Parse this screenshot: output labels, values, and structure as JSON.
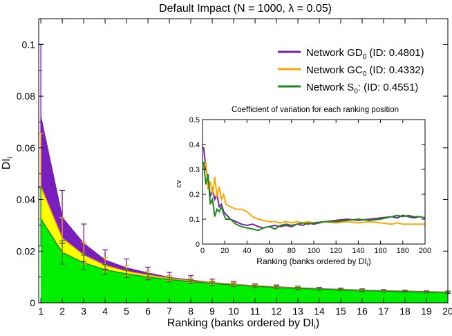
{
  "chart_data": [
    {
      "type": "area",
      "title": "Default Impact  (N = 1000, λ = 0.05)",
      "xlabel": "Ranking (banks ordered by DI",
      "xlabel_sub": "i",
      "xlabel_tail": ")",
      "ylabel": "DI",
      "ylabel_sub": "i",
      "xlim": [
        0.9,
        20
      ],
      "ylim": [
        0,
        0.11
      ],
      "x_ticks": [
        1,
        2,
        3,
        4,
        5,
        6,
        7,
        8,
        9,
        10,
        11,
        12,
        13,
        14,
        15,
        16,
        17,
        18,
        19,
        20
      ],
      "y_ticks": [
        0,
        0.02,
        0.04,
        0.06,
        0.08,
        0.1
      ],
      "y_tick_labels": [
        "0",
        "0.02",
        "0.04",
        "0.06",
        "0.08",
        "0.1"
      ],
      "grid": false,
      "legend": "top-right",
      "x": [
        1,
        2,
        3,
        4,
        5,
        6,
        7,
        8,
        9,
        10,
        11,
        12,
        13,
        14,
        15,
        16,
        17,
        18,
        19,
        20
      ],
      "series": [
        {
          "legend_main": "Network GD",
          "legend_sub": "0",
          "legend_tail": " (ID: 0.4801)",
          "color": "#7b1fa2",
          "fill": "#7a1fbf",
          "values": [
            0.072,
            0.033,
            0.023,
            0.0165,
            0.0135,
            0.0115,
            0.0098,
            0.0088,
            0.0078,
            0.0072,
            0.0066,
            0.0062,
            0.0058,
            0.0055,
            0.0052,
            0.0049,
            0.0047,
            0.0045,
            0.0043,
            0.0041
          ],
          "err_low": [
            0.045,
            0.023,
            0.016,
            0.013,
            0.0105,
            0.0092,
            0.0082,
            0.0075,
            0.0068,
            0.0063,
            0.0058,
            0.0055,
            0.0052,
            0.0049,
            0.0047,
            0.0044,
            0.0042,
            0.0041,
            0.0039,
            0.0037
          ],
          "err_high": [
            0.1,
            0.0435,
            0.0305,
            0.0205,
            0.017,
            0.0138,
            0.0118,
            0.0105,
            0.0092,
            0.0082,
            0.0074,
            0.0069,
            0.0064,
            0.006,
            0.0057,
            0.0054,
            0.0051,
            0.0049,
            0.0047,
            0.0045
          ]
        },
        {
          "legend_main": "Network GC",
          "legend_sub": "0",
          "legend_tail": " (ID: 0.4332)",
          "color": "#ffa500",
          "fill": "#ffff00",
          "values": [
            0.045,
            0.025,
            0.0185,
            0.0145,
            0.0122,
            0.0107,
            0.0095,
            0.0085,
            0.0077,
            0.0071,
            0.0066,
            0.0061,
            0.0057,
            0.0054,
            0.0051,
            0.0048,
            0.0046,
            0.0044,
            0.0042,
            0.004
          ],
          "err_low": [
            0.0325,
            0.0195,
            0.015,
            0.012,
            0.0105,
            0.0095,
            0.0086,
            0.0078,
            0.0071,
            0.0066,
            0.0061,
            0.0057,
            0.0053,
            0.005,
            0.0048,
            0.0045,
            0.0043,
            0.0041,
            0.0039,
            0.0037
          ],
          "err_high": [
            0.0655,
            0.033,
            0.0235,
            0.0175,
            0.0145,
            0.0123,
            0.0106,
            0.0094,
            0.0085,
            0.0078,
            0.0072,
            0.0066,
            0.0062,
            0.0058,
            0.0055,
            0.0052,
            0.0049,
            0.0047,
            0.0045,
            0.0043
          ]
        },
        {
          "legend_main": "Network S",
          "legend_sub": "0",
          "legend_tail": ": (ID: 0.4551)",
          "color": "#1a8a1a",
          "fill": "#00ee00",
          "values": [
            0.0325,
            0.0195,
            0.0155,
            0.0128,
            0.0112,
            0.01,
            0.009,
            0.0082,
            0.0075,
            0.0069,
            0.0064,
            0.0059,
            0.0056,
            0.0053,
            0.005,
            0.0047,
            0.0045,
            0.0043,
            0.0041,
            0.0039
          ],
          "err_low": [
            0.022,
            0.015,
            0.0128,
            0.011,
            0.0098,
            0.0089,
            0.0081,
            0.0074,
            0.0068,
            0.0063,
            0.0059,
            0.0055,
            0.0052,
            0.0049,
            0.0047,
            0.0044,
            0.0042,
            0.004,
            0.0038,
            0.0036
          ],
          "err_high": [
            0.0445,
            0.024,
            0.0185,
            0.0148,
            0.0127,
            0.0112,
            0.0099,
            0.0089,
            0.0081,
            0.0074,
            0.0069,
            0.0064,
            0.006,
            0.0057,
            0.0054,
            0.0051,
            0.0048,
            0.0046,
            0.0044,
            0.0042
          ]
        }
      ]
    },
    {
      "type": "line",
      "title": "Coefficient of variation for each ranking position",
      "xlabel": "Ranking (banks ordered by DI",
      "xlabel_sub": "i",
      "xlabel_tail": ")",
      "ylabel": "cv",
      "xlim": [
        0,
        200
      ],
      "ylim": [
        0,
        0.5
      ],
      "x_ticks": [
        0,
        20,
        40,
        60,
        80,
        100,
        120,
        140,
        160,
        180,
        200
      ],
      "y_ticks": [
        0,
        0.1,
        0.2,
        0.3,
        0.4,
        0.5
      ],
      "y_tick_labels": [
        "0",
        "0.1",
        "0.2",
        "0.3",
        "0.4",
        "0.5"
      ],
      "grid": false,
      "x": [
        1,
        3,
        5,
        7,
        9,
        11,
        13,
        15,
        17,
        19,
        21,
        25,
        30,
        35,
        40,
        45,
        50,
        55,
        60,
        65,
        70,
        75,
        80,
        85,
        90,
        95,
        100,
        110,
        120,
        130,
        140,
        150,
        160,
        170,
        175,
        180,
        185,
        190,
        195,
        200
      ],
      "series": [
        {
          "color": "#7b1fa2",
          "values": [
            0.39,
            0.3,
            0.27,
            0.19,
            0.22,
            0.18,
            0.2,
            0.15,
            0.16,
            0.13,
            0.12,
            0.1,
            0.09,
            0.08,
            0.075,
            0.08,
            0.07,
            0.065,
            0.07,
            0.075,
            0.07,
            0.075,
            0.07,
            0.08,
            0.075,
            0.085,
            0.08,
            0.09,
            0.095,
            0.1,
            0.095,
            0.1,
            0.105,
            0.11,
            0.105,
            0.115,
            0.11,
            0.105,
            0.11,
            0.105
          ]
        },
        {
          "color": "#ffa500",
          "values": [
            0.3,
            0.33,
            0.22,
            0.25,
            0.2,
            0.27,
            0.19,
            0.23,
            0.18,
            0.2,
            0.16,
            0.15,
            0.14,
            0.14,
            0.13,
            0.11,
            0.1,
            0.095,
            0.09,
            0.09,
            0.085,
            0.09,
            0.085,
            0.09,
            0.085,
            0.09,
            0.085,
            0.09,
            0.085,
            0.09,
            0.085,
            0.09,
            0.085,
            0.08,
            0.085,
            0.08,
            0.08,
            0.08,
            0.08,
            0.08
          ]
        },
        {
          "color": "#1a8a1a",
          "values": [
            0.33,
            0.24,
            0.28,
            0.16,
            0.18,
            0.11,
            0.14,
            0.13,
            0.15,
            0.12,
            0.1,
            0.1,
            0.08,
            0.07,
            0.065,
            0.06,
            0.055,
            0.065,
            0.07,
            0.06,
            0.075,
            0.08,
            0.075,
            0.08,
            0.085,
            0.08,
            0.085,
            0.09,
            0.09,
            0.095,
            0.1,
            0.095,
            0.1,
            0.11,
            0.115,
            0.11,
            0.115,
            0.11,
            0.11,
            0.105
          ]
        }
      ]
    }
  ]
}
